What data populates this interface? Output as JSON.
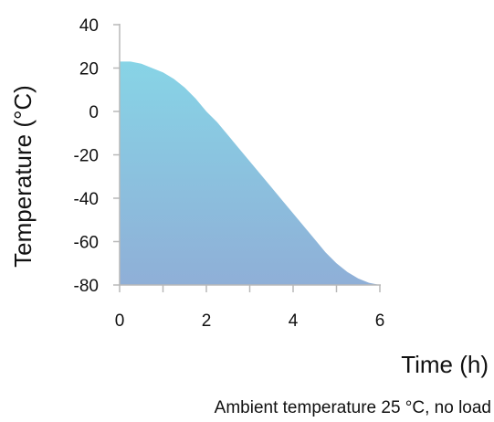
{
  "chart_data": {
    "type": "area",
    "xlabel": "Time (h)",
    "ylabel": "Temperature (°C)",
    "xlim": [
      0,
      6
    ],
    "ylim": [
      -80,
      40
    ],
    "xticks": [
      0,
      2,
      4,
      6
    ],
    "yticks": [
      40,
      20,
      0,
      -20,
      -40,
      -60,
      -80
    ],
    "x_minor_ticks": [
      1,
      3,
      5
    ],
    "grid": false,
    "fill_colors": {
      "top": "#87d4e6",
      "bottom": "#8fafd7"
    },
    "axis_color": "#b8b8b8",
    "series": [
      {
        "x": [
          0,
          0.25,
          0.5,
          0.75,
          1,
          1.25,
          1.5,
          1.75,
          2,
          2.25,
          2.5,
          2.75,
          3,
          3.25,
          3.5,
          3.75,
          4,
          4.25,
          4.5,
          4.75,
          5,
          5.25,
          5.5,
          5.75,
          6
        ],
        "y": [
          23,
          23,
          22,
          20,
          18,
          15,
          11,
          6,
          0,
          -5,
          -11,
          -17,
          -23,
          -29,
          -35,
          -41,
          -47,
          -53,
          -59,
          -65,
          -70,
          -74,
          -77,
          -79,
          -80
        ]
      }
    ]
  },
  "caption": "Ambient temperature 25 °C, no load"
}
